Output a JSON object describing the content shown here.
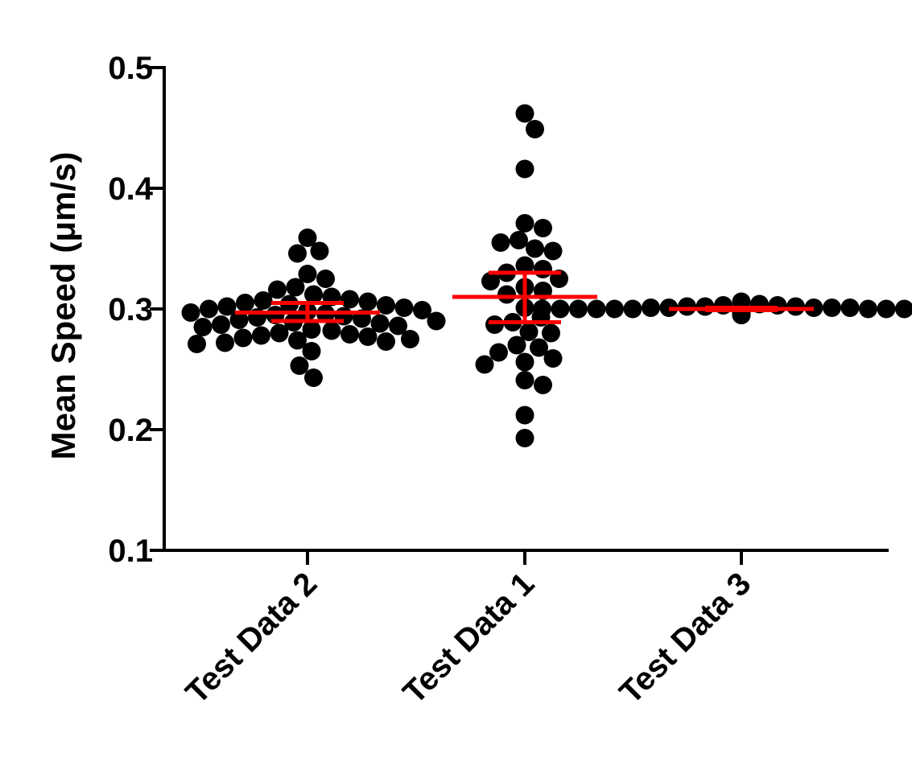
{
  "chart_data": {
    "type": "scatter",
    "subtype": "column-scatter-with-mean-and-error-bars",
    "title": "",
    "xlabel": "",
    "ylabel": "Mean Speed (μm/s)",
    "ylim": [
      0.1,
      0.5
    ],
    "yticks": [
      "0.5",
      "0.4",
      "0.3",
      "0.2",
      "0.1"
    ],
    "grid": false,
    "legend": "none",
    "point_color": "#000000",
    "summary_color": "#ff0000",
    "categories": [
      "Test Data 2",
      "Test Data 1",
      "Test Data 3"
    ],
    "series": [
      {
        "category": "Test Data 2",
        "mean": 0.297,
        "error_low": 0.29,
        "error_high": 0.305,
        "values": [
          0.359,
          0.348,
          0.346,
          0.329,
          0.325,
          0.318,
          0.316,
          0.312,
          0.31,
          0.308,
          0.307,
          0.306,
          0.305,
          0.304,
          0.303,
          0.302,
          0.301,
          0.3,
          0.299,
          0.298,
          0.297,
          0.296,
          0.295,
          0.294,
          0.293,
          0.292,
          0.291,
          0.29,
          0.289,
          0.288,
          0.287,
          0.286,
          0.285,
          0.283,
          0.282,
          0.28,
          0.279,
          0.278,
          0.277,
          0.276,
          0.275,
          0.274,
          0.273,
          0.272,
          0.271,
          0.265,
          0.253,
          0.243
        ]
      },
      {
        "category": "Test Data 1",
        "mean": 0.31,
        "error_low": 0.289,
        "error_high": 0.33,
        "values": [
          0.462,
          0.449,
          0.416,
          0.371,
          0.367,
          0.357,
          0.355,
          0.35,
          0.348,
          0.336,
          0.333,
          0.33,
          0.325,
          0.323,
          0.318,
          0.315,
          0.312,
          0.301,
          0.293,
          0.289,
          0.287,
          0.281,
          0.28,
          0.27,
          0.268,
          0.264,
          0.259,
          0.256,
          0.254,
          0.241,
          0.237,
          0.212,
          0.193
        ]
      },
      {
        "category": "Test Data 3",
        "mean": 0.3,
        "error_low": 0.299,
        "error_high": 0.301,
        "values": [
          0.306,
          0.304,
          0.303,
          0.303,
          0.302,
          0.302,
          0.302,
          0.301,
          0.301,
          0.301,
          0.301,
          0.301,
          0.3,
          0.3,
          0.3,
          0.3,
          0.3,
          0.3,
          0.3,
          0.3,
          0.3,
          0.3,
          0.3,
          0.3,
          0.3,
          0.3,
          0.299,
          0.299,
          0.299,
          0.299,
          0.299,
          0.299,
          0.299,
          0.299,
          0.298,
          0.298,
          0.298,
          0.298,
          0.298,
          0.297,
          0.297,
          0.297,
          0.297,
          0.296,
          0.296,
          0.296,
          0.296,
          0.295,
          0.295,
          0.295
        ]
      }
    ]
  }
}
